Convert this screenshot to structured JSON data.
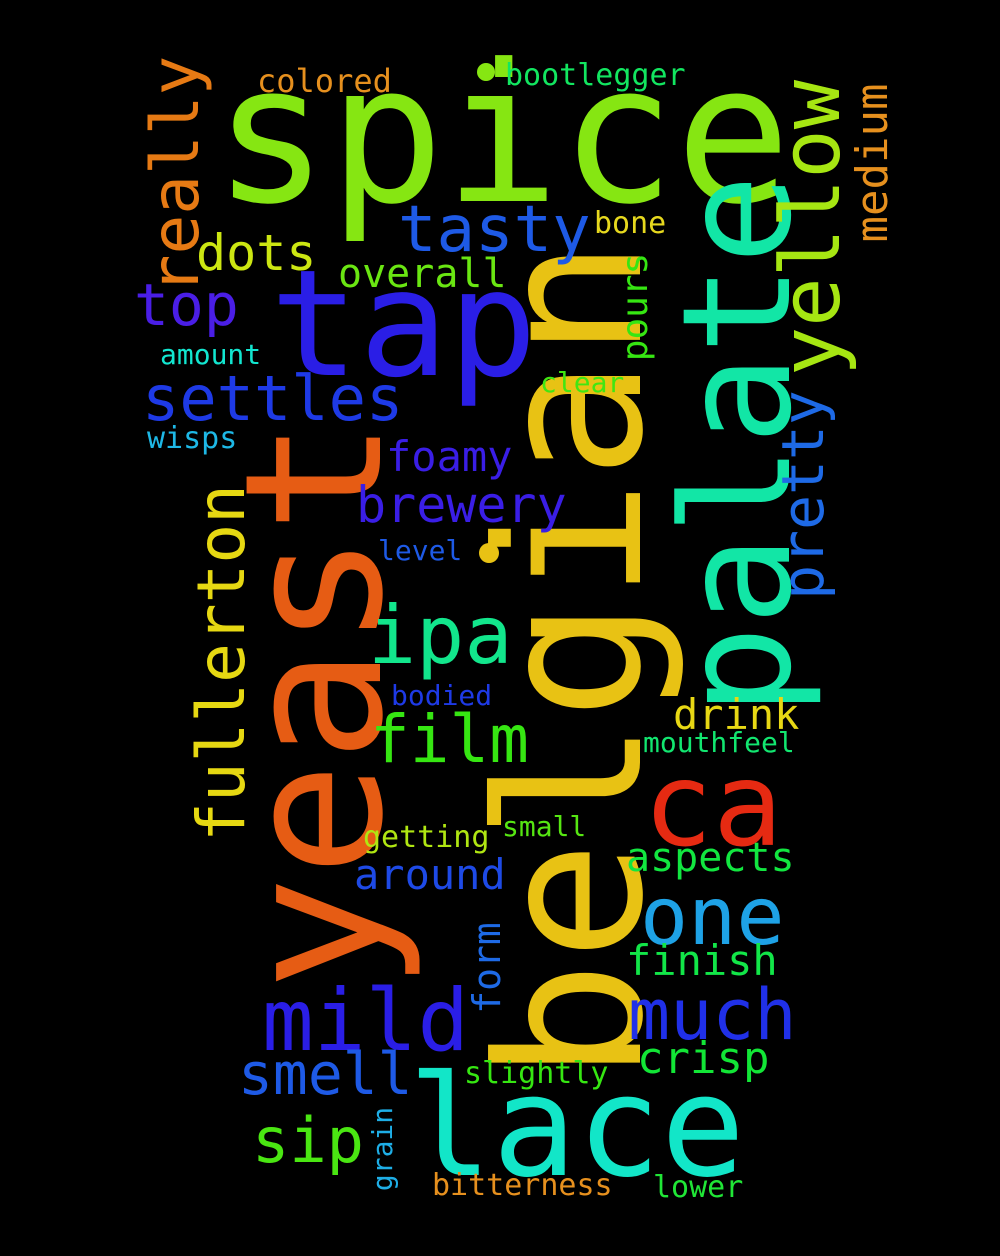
{
  "words": [
    {
      "text": "spice",
      "color": "#86e612"
    },
    {
      "text": "belgian",
      "color": "#e8c214"
    },
    {
      "text": "yeast",
      "color": "#e65c14"
    },
    {
      "text": "palate",
      "color": "#12e6a6"
    },
    {
      "text": "tap",
      "color": "#2a1ee6"
    },
    {
      "text": "lace",
      "color": "#12e6c8"
    },
    {
      "text": "ca",
      "color": "#e62a12"
    },
    {
      "text": "yellow",
      "color": "#a6e612"
    },
    {
      "text": "mild",
      "color": "#2a1ee6"
    },
    {
      "text": "one",
      "color": "#1ea2e6"
    },
    {
      "text": "ipa",
      "color": "#12e68c"
    },
    {
      "text": "much",
      "color": "#2030e8"
    },
    {
      "text": "fullerton",
      "color": "#e6d812"
    },
    {
      "text": "really",
      "color": "#e67a14"
    },
    {
      "text": "film",
      "color": "#36e612"
    },
    {
      "text": "tasty",
      "color": "#1e5ae6"
    },
    {
      "text": "settles",
      "color": "#1e3ae6"
    },
    {
      "text": "smell",
      "color": "#1e5ae6"
    },
    {
      "text": "sip",
      "color": "#4ae612"
    },
    {
      "text": "pretty",
      "color": "#1e6ae6"
    },
    {
      "text": "medium",
      "color": "#e6901e"
    },
    {
      "text": "top",
      "color": "#4a1ee6"
    },
    {
      "text": "brewery",
      "color": "#3a1ee6"
    },
    {
      "text": "dots",
      "color": "#cce612"
    },
    {
      "text": "aspects",
      "color": "#12e640"
    },
    {
      "text": "finish",
      "color": "#12e648"
    },
    {
      "text": "crisp",
      "color": "#12e636"
    },
    {
      "text": "drink",
      "color": "#e8d814"
    },
    {
      "text": "around",
      "color": "#1e4ae6"
    },
    {
      "text": "overall",
      "color": "#6ae612"
    },
    {
      "text": "foamy",
      "color": "#3a1ee6"
    },
    {
      "text": "pours",
      "color": "#36e612"
    },
    {
      "text": "form",
      "color": "#1e6ae6"
    },
    {
      "text": "colored",
      "color": "#e6901e"
    },
    {
      "text": "bootlegger",
      "color": "#12e660"
    },
    {
      "text": "bone",
      "color": "#e6d81e"
    },
    {
      "text": "amount",
      "color": "#12e6d0"
    },
    {
      "text": "clear",
      "color": "#40e612"
    },
    {
      "text": "wisps",
      "color": "#1eb8e6"
    },
    {
      "text": "level",
      "color": "#1e5ae6"
    },
    {
      "text": "bodied",
      "color": "#1e3ae6"
    },
    {
      "text": "mouthfeel",
      "color": "#12e670"
    },
    {
      "text": "getting",
      "color": "#b0e612"
    },
    {
      "text": "small",
      "color": "#56e612"
    },
    {
      "text": "slightly",
      "color": "#36e612"
    },
    {
      "text": "grain",
      "color": "#1eaee6"
    },
    {
      "text": "bitterness",
      "color": "#e6901e"
    },
    {
      "text": "lower",
      "color": "#20e636"
    }
  ],
  "dots": [
    {
      "color": "#86e612"
    },
    {
      "color": "#e8c214"
    }
  ]
}
